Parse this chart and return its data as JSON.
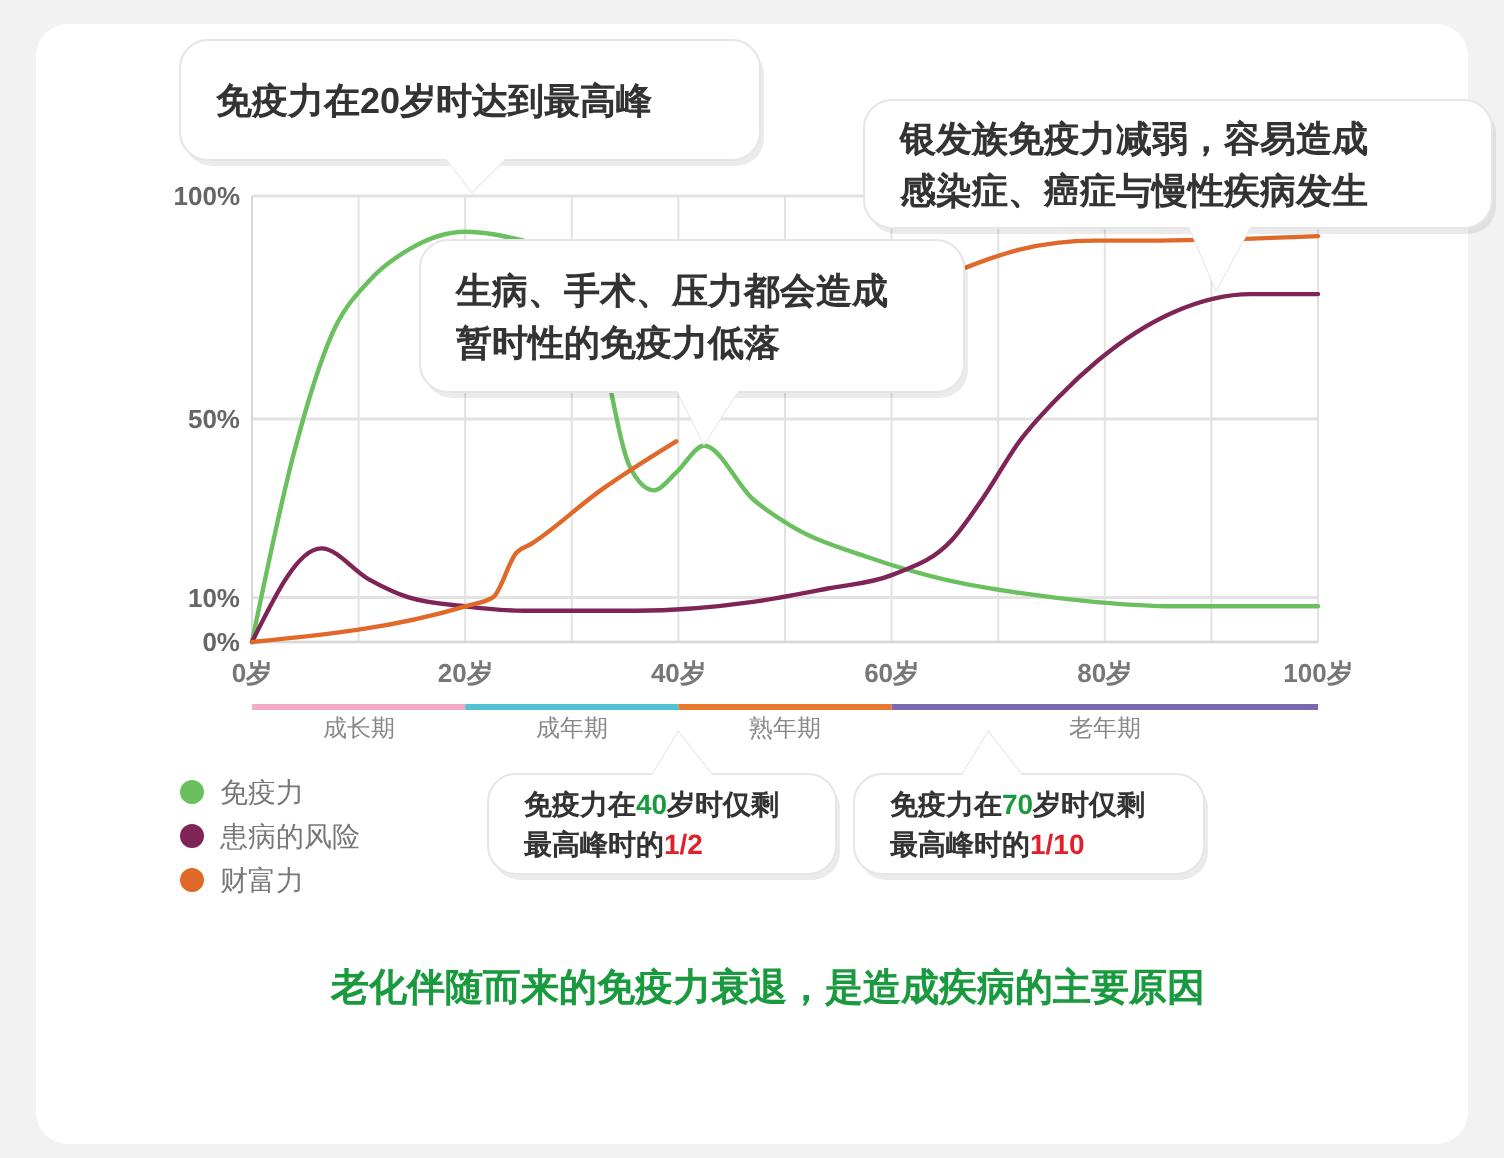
{
  "chart_data": {
    "type": "line",
    "xlim": [
      0,
      100
    ],
    "ylim": [
      0,
      100
    ],
    "xticks": [
      {
        "value": 0,
        "label": "0岁"
      },
      {
        "value": 10,
        "label": null
      },
      {
        "value": 20,
        "label": "20岁"
      },
      {
        "value": 30,
        "label": null
      },
      {
        "value": 40,
        "label": "40岁"
      },
      {
        "value": 50,
        "label": null
      },
      {
        "value": 60,
        "label": "60岁"
      },
      {
        "value": 70,
        "label": null
      },
      {
        "value": 80,
        "label": "80岁"
      },
      {
        "value": 90,
        "label": null
      },
      {
        "value": 100,
        "label": "100岁"
      }
    ],
    "yticks": [
      {
        "value": 0,
        "label": "0%"
      },
      {
        "value": 10,
        "label": "10%"
      },
      {
        "value": 50,
        "label": "50%"
      },
      {
        "value": 100,
        "label": "100%"
      }
    ],
    "grid": true,
    "legend": "bottom left",
    "marker": "none",
    "line_style": "solid",
    "series": [
      {
        "name": "免疫力",
        "color": "#6abf5e",
        "x": [
          0,
          4,
          7.5,
          11,
          14.7,
          20,
          25.5,
          29,
          32,
          33.7,
          35.5,
          37.7,
          39.8,
          42.4,
          47,
          50.6,
          57.8,
          65,
          72,
          79,
          86.5,
          100
        ],
        "values": [
          0,
          43,
          69,
          81,
          88,
          92,
          90,
          null,
          null,
          56,
          39,
          34,
          38,
          44,
          32,
          26,
          19,
          14,
          11,
          9,
          8,
          8
        ]
      },
      {
        "name": "患病的风险",
        "color": "#7e2456",
        "x": [
          0,
          6.5,
          11,
          14.7,
          20,
          25.5,
          36,
          47,
          54,
          60,
          65.7,
          68.5,
          72,
          75.7,
          79.3,
          86.5,
          93.7,
          100
        ],
        "values": [
          0,
          21,
          14,
          10,
          8,
          7,
          7,
          9,
          12,
          15,
          23,
          32,
          45,
          55,
          63,
          74,
          78,
          78
        ]
      },
      {
        "name": "财富力",
        "color": "#e0692a",
        "x": [
          0,
          20,
          22.6,
          24.8,
          26.2,
          32.7,
          39.8,
          45,
          50,
          55,
          60,
          67,
          72,
          79,
          84,
          100
        ],
        "values": [
          0,
          8,
          10,
          20,
          22,
          34,
          45,
          null,
          null,
          null,
          null,
          84,
          88,
          90,
          90,
          91
        ]
      }
    ],
    "annotations": [
      "免疫力在20岁时达到最高峰",
      "生病、手术、压力都会造成暂时性的免疫力低落",
      "银发族免疫力减弱，容易造成感染症、癌症与慢性疾病发生",
      "免疫力在40岁时仅剩最高峰时的1/2",
      "免疫力在70岁时仅剩最高峰时的1/10",
      "成长期",
      "成年期",
      "熟年期",
      "老年期",
      "老化伴随而来的免疫力衰退，是造成疾病的主要原因"
    ]
  }
}
